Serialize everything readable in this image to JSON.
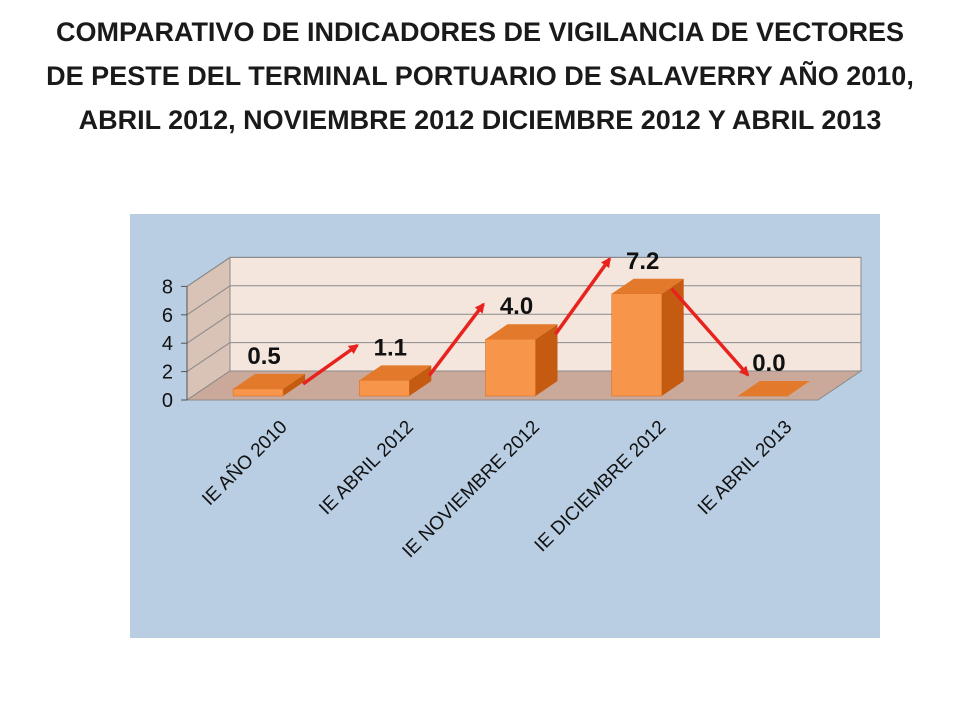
{
  "title": "COMPARATIVO DE INDICADORES DE VIGILANCIA DE VECTORES DE PESTE DEL TERMINAL PORTUARIO DE SALAVERRY AÑO 2010, ABRIL 2012, NOVIEMBRE 2012 DICIEMBRE 2012 Y ABRIL 2013",
  "chart_data": {
    "type": "bar",
    "style": "3d-column",
    "categories": [
      "IE AÑO 2010",
      "IE ABRIL 2012",
      "IE NOVIEMBRE 2012",
      "IE DICIEMBRE  2012",
      "IE  ABRIL   2013"
    ],
    "values": [
      0.5,
      1.1,
      4.0,
      7.2,
      0.0
    ],
    "data_labels": [
      "0.5",
      "1.1",
      "4.0",
      "7.2",
      "0.0"
    ],
    "yticks": [
      "0",
      "2",
      "4",
      "6",
      "8"
    ],
    "ylim": [
      0,
      8
    ],
    "grid": true,
    "legend": "none",
    "trend_arrows": true,
    "colors": {
      "background": "#b9cde3",
      "wall": "#f5e6dd",
      "floor": "#cba99a",
      "bar_front": "#f7964a",
      "bar_side": "#c55a11",
      "bar_top": "#e3792b",
      "arrow": "#e8231e"
    }
  }
}
